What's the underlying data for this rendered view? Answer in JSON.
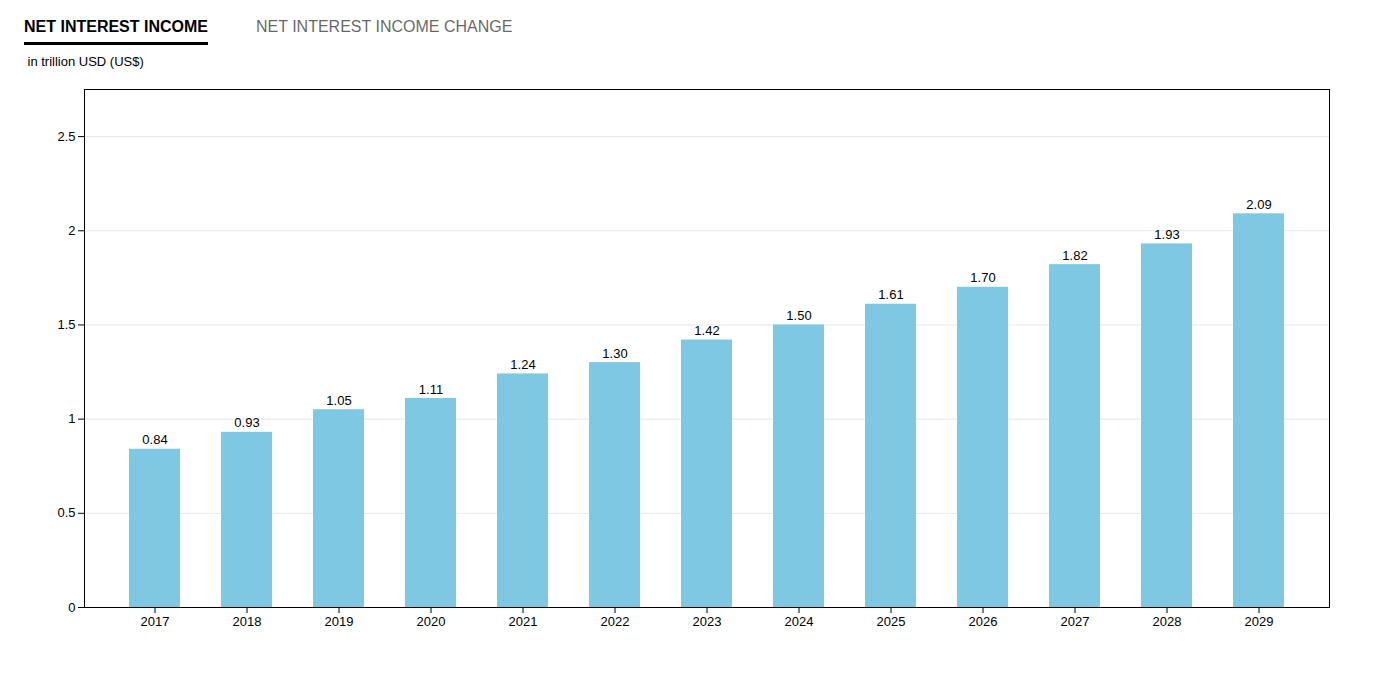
{
  "chart_data": {
    "type": "bar",
    "title": "NET INTEREST INCOME",
    "subtitle": "NET INTEREST INCOME CHANGE",
    "categories": [
      "2017",
      "2018",
      "2019",
      "2020",
      "2021",
      "2022",
      "2023",
      "2024",
      "2025",
      "2026",
      "2027",
      "2028",
      "2029"
    ],
    "values": [
      0.84,
      0.93,
      1.05,
      1.11,
      1.24,
      1.3,
      1.42,
      1.5,
      1.61,
      1.7,
      1.82,
      1.93,
      2.09
    ],
    "value_labels": [
      "0.84",
      "0.93",
      "1.05",
      "1.11",
      "1.24",
      "1.30",
      "1.42",
      "1.50",
      "1.61",
      "1.70",
      "1.82",
      "1.93",
      "2.09"
    ],
    "data_labels": true,
    "color": "#7ec8e3",
    "ylabel": "in trillion USD (US$)",
    "ylim": [
      0,
      2.75
    ],
    "yticks": [
      0,
      0.5,
      1,
      1.5,
      2,
      2.5
    ],
    "grid": true
  }
}
